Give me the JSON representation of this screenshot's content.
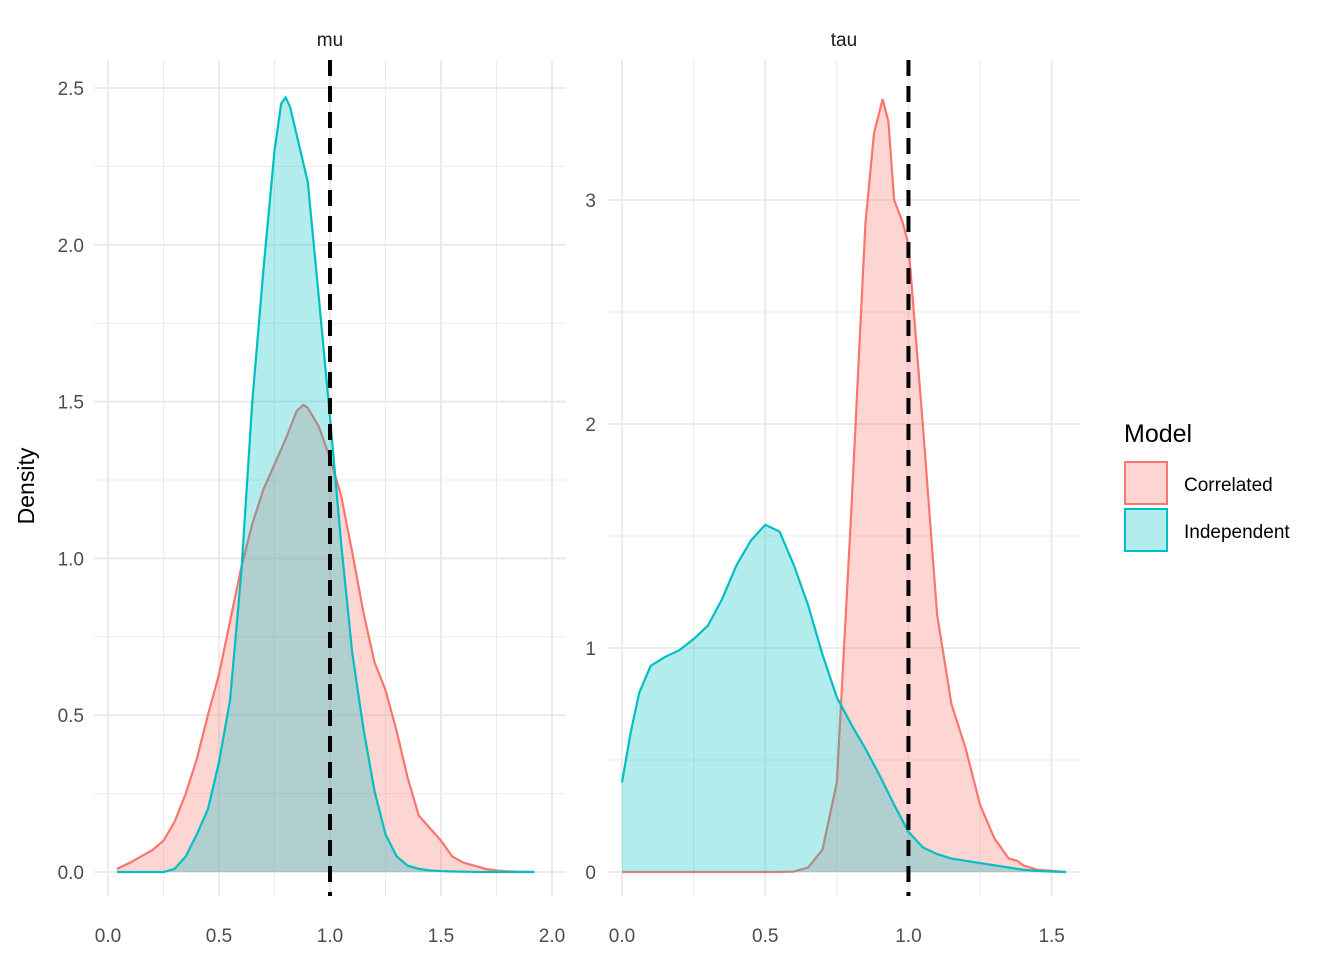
{
  "chart_data": {
    "type": "area",
    "ylabel": "Density",
    "xlabel": "",
    "legend": {
      "title": "Model",
      "position": "right",
      "entries": [
        {
          "name": "Correlated",
          "color": "#F8766D"
        },
        {
          "name": "Independent",
          "color": "#00BFC4"
        }
      ]
    },
    "colors": {
      "Correlated": "#F8766D",
      "Independent": "#00BFC4",
      "reference_line": "#000000",
      "grid": "#EBEBEB"
    },
    "fill_opacity": 0.3,
    "grid": true,
    "panels": [
      {
        "strip": "mu",
        "xlim": [
          0,
          2
        ],
        "ylim": [
          0,
          2.5
        ],
        "x_ticks": [
          "0.0",
          "0.5",
          "1.0",
          "1.5",
          "2.0"
        ],
        "y_ticks": [
          "0.0",
          "0.5",
          "1.0",
          "1.5",
          "2.0",
          "2.5"
        ],
        "reference_x": 1.0,
        "series": [
          {
            "name": "Correlated",
            "x": [
              0.04,
              0.1,
              0.15,
              0.2,
              0.25,
              0.3,
              0.35,
              0.4,
              0.45,
              0.5,
              0.55,
              0.6,
              0.65,
              0.7,
              0.75,
              0.8,
              0.85,
              0.88,
              0.9,
              0.95,
              1.0,
              1.05,
              1.1,
              1.15,
              1.2,
              1.25,
              1.3,
              1.35,
              1.4,
              1.45,
              1.5,
              1.55,
              1.6,
              1.65,
              1.7,
              1.75,
              1.8,
              1.85,
              1.92
            ],
            "y": [
              0.01,
              0.03,
              0.05,
              0.07,
              0.1,
              0.16,
              0.25,
              0.36,
              0.5,
              0.63,
              0.8,
              0.97,
              1.11,
              1.22,
              1.3,
              1.38,
              1.47,
              1.49,
              1.48,
              1.42,
              1.32,
              1.2,
              1.02,
              0.83,
              0.67,
              0.58,
              0.45,
              0.3,
              0.18,
              0.14,
              0.1,
              0.05,
              0.03,
              0.02,
              0.01,
              0.005,
              0.002,
              0.001,
              0.0
            ]
          },
          {
            "name": "Independent",
            "x": [
              0.04,
              0.1,
              0.2,
              0.25,
              0.3,
              0.35,
              0.4,
              0.45,
              0.5,
              0.55,
              0.6,
              0.65,
              0.7,
              0.75,
              0.78,
              0.8,
              0.82,
              0.85,
              0.9,
              0.95,
              1.0,
              1.05,
              1.1,
              1.15,
              1.2,
              1.25,
              1.3,
              1.35,
              1.4,
              1.45,
              1.5,
              1.6,
              1.7,
              1.8,
              1.92
            ],
            "y": [
              0.0,
              0.0,
              0.0,
              0.0,
              0.01,
              0.05,
              0.12,
              0.2,
              0.35,
              0.55,
              0.95,
              1.5,
              1.92,
              2.3,
              2.45,
              2.47,
              2.44,
              2.35,
              2.2,
              1.83,
              1.45,
              1.05,
              0.7,
              0.46,
              0.26,
              0.12,
              0.05,
              0.02,
              0.01,
              0.005,
              0.003,
              0.001,
              0.0,
              0.0,
              0.0
            ]
          }
        ]
      },
      {
        "strip": "tau",
        "xlim": [
          0,
          1.55
        ],
        "ylim": [
          0,
          3.5
        ],
        "x_ticks": [
          "0.0",
          "0.5",
          "1.0",
          "1.5"
        ],
        "y_ticks": [
          "0",
          "1",
          "2",
          "3"
        ],
        "reference_x": 1.0,
        "series": [
          {
            "name": "Correlated",
            "x": [
              0.0,
              0.2,
              0.4,
              0.55,
              0.6,
              0.65,
              0.7,
              0.75,
              0.8,
              0.85,
              0.88,
              0.91,
              0.93,
              0.95,
              0.98,
              1.0,
              1.05,
              1.1,
              1.15,
              1.2,
              1.25,
              1.3,
              1.35,
              1.38,
              1.4,
              1.45,
              1.5,
              1.55
            ],
            "y": [
              0.0,
              0.0,
              0.0,
              0.0,
              0.002,
              0.02,
              0.1,
              0.4,
              1.6,
              2.9,
              3.3,
              3.45,
              3.35,
              3.0,
              2.9,
              2.8,
              2.0,
              1.15,
              0.75,
              0.55,
              0.3,
              0.15,
              0.06,
              0.05,
              0.03,
              0.01,
              0.005,
              0.0
            ]
          },
          {
            "name": "Independent",
            "x": [
              0.0,
              0.03,
              0.06,
              0.1,
              0.15,
              0.2,
              0.25,
              0.3,
              0.35,
              0.4,
              0.45,
              0.5,
              0.55,
              0.6,
              0.65,
              0.7,
              0.75,
              0.8,
              0.85,
              0.9,
              0.95,
              1.0,
              1.05,
              1.1,
              1.15,
              1.2,
              1.25,
              1.3,
              1.35,
              1.4,
              1.45,
              1.5,
              1.55
            ],
            "y": [
              0.4,
              0.62,
              0.8,
              0.92,
              0.96,
              0.99,
              1.04,
              1.1,
              1.22,
              1.37,
              1.48,
              1.55,
              1.52,
              1.37,
              1.19,
              0.97,
              0.78,
              0.66,
              0.55,
              0.43,
              0.3,
              0.18,
              0.11,
              0.08,
              0.06,
              0.05,
              0.04,
              0.03,
              0.02,
              0.01,
              0.005,
              0.002,
              0.0
            ]
          }
        ]
      }
    ]
  }
}
